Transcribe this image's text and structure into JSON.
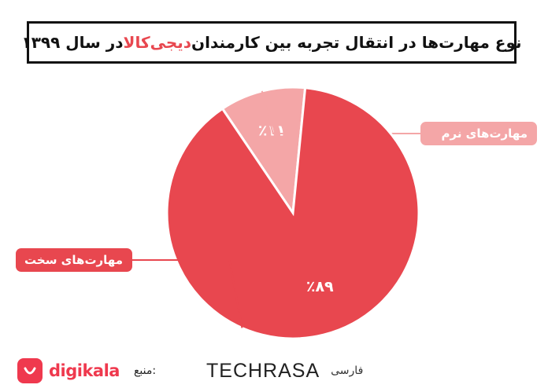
{
  "title": {
    "prefix": "نوع مهارت‌ها در انتقال تجربه بین کارمندان ",
    "highlight": "دیجی‌کالا",
    "suffix": " در سال ۱۳۹۹"
  },
  "chart_data": {
    "type": "pie",
    "title": "نوع مهارت‌ها در انتقال تجربه بین کارمندان دیجی‌کالا در سال ۱۳۹۹",
    "slices": [
      {
        "label": "مهارت‌های نرم",
        "value": 11,
        "value_label": "٪۱۱",
        "color": "#f4a6a7"
      },
      {
        "label": "مهارت‌های سخت",
        "value": 89,
        "value_label": "٪۸۹",
        "color": "#e8474f"
      }
    ]
  },
  "footer": {
    "source_label": "منبع:",
    "source_logo_text": "digikala",
    "brand_name": "TECHRASA",
    "brand_sub": "فارسی"
  },
  "colors": {
    "accent": "#e8474f",
    "soft": "#f4a6a7",
    "digikala": "#ef394e"
  }
}
